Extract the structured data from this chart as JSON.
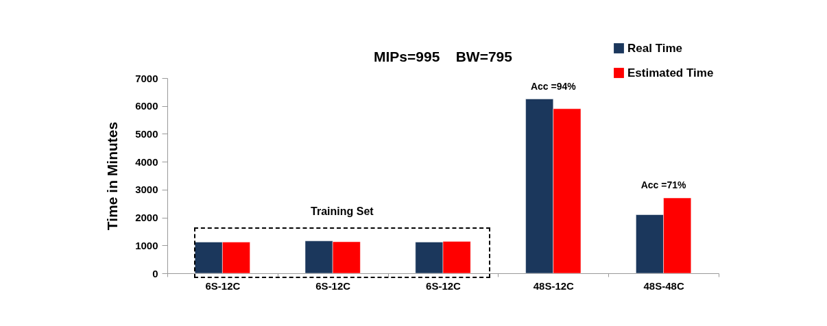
{
  "chart_data": {
    "type": "bar",
    "title": "MIPs=995    BW=795",
    "ylabel": "Time in Minutes",
    "categories": [
      "6S-12C",
      "6S-12C",
      "6S-12C",
      "48S-12C",
      "48S-48C"
    ],
    "series": [
      {
        "name": "Real Time",
        "color": "#1b375c",
        "values": [
          1120,
          1160,
          1120,
          6250,
          2100
        ]
      },
      {
        "name": "Estimated Time",
        "color": "#ff0000",
        "values": [
          1120,
          1130,
          1140,
          5900,
          2700
        ]
      }
    ],
    "ylim": [
      0,
      7000
    ],
    "yticks": [
      0,
      1000,
      2000,
      3000,
      4000,
      5000,
      6000,
      7000
    ],
    "grid": false,
    "legend": "top right",
    "annotations": [
      "Training Set",
      {
        "text": "Acc =94%",
        "x": "48S-12C",
        "y": 6250
      },
      {
        "text": "Acc =71%",
        "x": "48S-48C",
        "y": 2700
      }
    ]
  }
}
